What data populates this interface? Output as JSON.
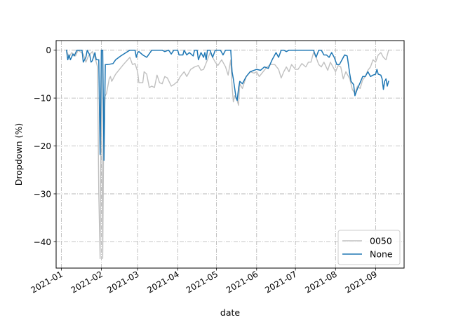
{
  "chart_data": {
    "type": "line",
    "title": "",
    "xlabel": "date",
    "ylabel": "Dropdown (%)",
    "x_range": [
      "2020-12-28",
      "2021-09-23"
    ],
    "ylim": [
      -45.5,
      2
    ],
    "grid": true,
    "grid_style": "dash-dot",
    "legend_position": "lower-right",
    "x_ticks": [
      {
        "date": "2021-01-01",
        "label": "2021-01"
      },
      {
        "date": "2021-02-01",
        "label": "2021-02"
      },
      {
        "date": "2021-03-01",
        "label": "2021-03"
      },
      {
        "date": "2021-04-01",
        "label": "2021-04"
      },
      {
        "date": "2021-05-01",
        "label": "2021-05"
      },
      {
        "date": "2021-06-01",
        "label": "2021-06"
      },
      {
        "date": "2021-07-01",
        "label": "2021-07"
      },
      {
        "date": "2021-08-01",
        "label": "2021-08"
      },
      {
        "date": "2021-09-01",
        "label": "2021-09"
      }
    ],
    "y_ticks": [
      {
        "value": 0,
        "label": "0"
      },
      {
        "value": -10,
        "label": "−10"
      },
      {
        "value": -20,
        "label": "−20"
      },
      {
        "value": -30,
        "label": "−30"
      },
      {
        "value": -40,
        "label": "−40"
      }
    ],
    "series": [
      {
        "name": "0050",
        "color": "#c0c0c0",
        "points": [
          [
            "2021-01-05",
            0
          ],
          [
            "2021-01-07",
            -1.5
          ],
          [
            "2021-01-09",
            -0.5
          ],
          [
            "2021-01-12",
            -1.2
          ],
          [
            "2021-01-14",
            0
          ],
          [
            "2021-01-18",
            -0.8
          ],
          [
            "2021-01-20",
            -2.5
          ],
          [
            "2021-01-22",
            -1.2
          ],
          [
            "2021-01-25",
            -0.3
          ],
          [
            "2021-01-27",
            -1.5
          ],
          [
            "2021-01-29",
            -3.5
          ],
          [
            "2021-01-30",
            -30
          ],
          [
            "2021-01-31",
            -43.5
          ],
          [
            "2021-02-01",
            0
          ],
          [
            "2021-02-02",
            -43.5
          ],
          [
            "2021-02-03",
            -10
          ],
          [
            "2021-02-05",
            -9
          ],
          [
            "2021-02-07",
            -6
          ],
          [
            "2021-02-08",
            -5.5
          ],
          [
            "2021-02-09",
            -6.5
          ],
          [
            "2021-02-12",
            -5
          ],
          [
            "2021-02-18",
            -3
          ],
          [
            "2021-02-23",
            -1.5
          ],
          [
            "2021-02-25",
            -3
          ],
          [
            "2021-02-27",
            -2.8
          ],
          [
            "2021-03-01",
            -4.5
          ],
          [
            "2021-03-02",
            -6.8
          ],
          [
            "2021-03-05",
            -6.8
          ],
          [
            "2021-03-06",
            -4.5
          ],
          [
            "2021-03-08",
            -5
          ],
          [
            "2021-03-10",
            -7.8
          ],
          [
            "2021-03-12",
            -7.5
          ],
          [
            "2021-03-14",
            -7.8
          ],
          [
            "2021-03-16",
            -5.2
          ],
          [
            "2021-03-18",
            -6.8
          ],
          [
            "2021-03-20",
            -7
          ],
          [
            "2021-03-22",
            -5.5
          ],
          [
            "2021-03-24",
            -5.8
          ],
          [
            "2021-03-27",
            -7.5
          ],
          [
            "2021-03-29",
            -7.2
          ],
          [
            "2021-04-01",
            -6.5
          ],
          [
            "2021-04-03",
            -5.5
          ],
          [
            "2021-04-06",
            -4.5
          ],
          [
            "2021-04-08",
            -5.5
          ],
          [
            "2021-04-11",
            -4
          ],
          [
            "2021-04-14",
            -3.5
          ],
          [
            "2021-04-17",
            -3.2
          ],
          [
            "2021-04-19",
            -4.2
          ],
          [
            "2021-04-21",
            -4
          ],
          [
            "2021-04-24",
            -2
          ],
          [
            "2021-04-26",
            -0.5
          ],
          [
            "2021-04-28",
            -1.5
          ],
          [
            "2021-04-30",
            -2.5
          ],
          [
            "2021-05-02",
            -3.2
          ],
          [
            "2021-05-05",
            -2
          ],
          [
            "2021-05-08",
            -3.5
          ],
          [
            "2021-05-10",
            -5.2
          ],
          [
            "2021-05-12",
            -2
          ],
          [
            "2021-05-13",
            -7.5
          ],
          [
            "2021-05-14",
            -10.8
          ],
          [
            "2021-05-15",
            -9.5
          ],
          [
            "2021-05-17",
            -10.5
          ],
          [
            "2021-05-18",
            -11.5
          ],
          [
            "2021-05-19",
            -7
          ],
          [
            "2021-05-21",
            -8
          ],
          [
            "2021-05-24",
            -5.5
          ],
          [
            "2021-05-27",
            -4.5
          ],
          [
            "2021-05-30",
            -4.8
          ],
          [
            "2021-06-01",
            -4.5
          ],
          [
            "2021-06-03",
            -5.5
          ],
          [
            "2021-06-06",
            -4.5
          ],
          [
            "2021-06-09",
            -3.5
          ],
          [
            "2021-06-12",
            -3
          ],
          [
            "2021-06-15",
            -3
          ],
          [
            "2021-06-18",
            -4
          ],
          [
            "2021-06-20",
            -5.8
          ],
          [
            "2021-06-22",
            -4.5
          ],
          [
            "2021-06-24",
            -3.5
          ],
          [
            "2021-06-26",
            -4.5
          ],
          [
            "2021-06-28",
            -3
          ],
          [
            "2021-07-01",
            -4
          ],
          [
            "2021-07-03",
            -4
          ],
          [
            "2021-07-06",
            -2.8
          ],
          [
            "2021-07-09",
            -3.5
          ],
          [
            "2021-07-11",
            -2.5
          ],
          [
            "2021-07-13",
            -2.5
          ],
          [
            "2021-07-15",
            -0.5
          ],
          [
            "2021-07-17",
            -1.5
          ],
          [
            "2021-07-19",
            -3
          ],
          [
            "2021-07-21",
            -3.5
          ],
          [
            "2021-07-23",
            -2.5
          ],
          [
            "2021-07-26",
            -4.2
          ],
          [
            "2021-07-28",
            -2.5
          ],
          [
            "2021-07-30",
            -3.5
          ],
          [
            "2021-08-01",
            -4.5
          ],
          [
            "2021-08-03",
            -3.2
          ],
          [
            "2021-08-05",
            -3.5
          ],
          [
            "2021-08-07",
            -6
          ],
          [
            "2021-08-09",
            -4.5
          ],
          [
            "2021-08-12",
            -6
          ],
          [
            "2021-08-14",
            -8.2
          ],
          [
            "2021-08-16",
            -9
          ],
          [
            "2021-08-18",
            -7.5
          ],
          [
            "2021-08-20",
            -8
          ],
          [
            "2021-08-22",
            -6.2
          ],
          [
            "2021-08-24",
            -5.5
          ],
          [
            "2021-08-26",
            -4.2
          ],
          [
            "2021-08-28",
            -3.5
          ],
          [
            "2021-08-30",
            -2
          ],
          [
            "2021-09-01",
            -2.5
          ],
          [
            "2021-09-03",
            -1
          ],
          [
            "2021-09-05",
            -0.5
          ],
          [
            "2021-09-07",
            -1.5
          ],
          [
            "2021-09-09",
            -2
          ],
          [
            "2021-09-11",
            0
          ]
        ]
      },
      {
        "name": "None",
        "color": "#1f77b4",
        "points": [
          [
            "2021-01-05",
            0
          ],
          [
            "2021-01-06",
            -2
          ],
          [
            "2021-01-07",
            -1
          ],
          [
            "2021-01-08",
            -2
          ],
          [
            "2021-01-10",
            -0.8
          ],
          [
            "2021-01-11",
            -1.2
          ],
          [
            "2021-01-13",
            0
          ],
          [
            "2021-01-17",
            0
          ],
          [
            "2021-01-18",
            -2.5
          ],
          [
            "2021-01-20",
            -1.5
          ],
          [
            "2021-01-21",
            0
          ],
          [
            "2021-01-23",
            -1
          ],
          [
            "2021-01-24",
            -2.5
          ],
          [
            "2021-01-25",
            -2.2
          ],
          [
            "2021-01-27",
            -0.5
          ],
          [
            "2021-01-28",
            -2
          ],
          [
            "2021-01-30",
            -2
          ],
          [
            "2021-01-31",
            -21.8
          ],
          [
            "2021-02-01",
            0
          ],
          [
            "2021-02-02",
            0
          ],
          [
            "2021-02-03",
            -23
          ],
          [
            "2021-02-04",
            -3
          ],
          [
            "2021-02-06",
            -3
          ],
          [
            "2021-02-10",
            -2.8
          ],
          [
            "2021-02-12",
            -2
          ],
          [
            "2021-02-16",
            -1.2
          ],
          [
            "2021-02-20",
            -0.5
          ],
          [
            "2021-02-23",
            0
          ],
          [
            "2021-02-27",
            0
          ],
          [
            "2021-02-28",
            -1.5
          ],
          [
            "2021-03-01",
            -0.5
          ],
          [
            "2021-03-02",
            -0.3
          ],
          [
            "2021-03-05",
            -1
          ],
          [
            "2021-03-08",
            -1.5
          ],
          [
            "2021-03-12",
            0
          ],
          [
            "2021-03-20",
            0
          ],
          [
            "2021-03-22",
            -0.3
          ],
          [
            "2021-03-25",
            0
          ],
          [
            "2021-03-27",
            -0.8
          ],
          [
            "2021-03-29",
            0
          ],
          [
            "2021-04-01",
            0
          ],
          [
            "2021-04-02",
            -1
          ],
          [
            "2021-04-05",
            -1
          ],
          [
            "2021-04-06",
            0
          ],
          [
            "2021-04-08",
            -1
          ],
          [
            "2021-04-10",
            -0.5
          ],
          [
            "2021-04-13",
            -1.2
          ],
          [
            "2021-04-14",
            0
          ],
          [
            "2021-04-16",
            0
          ],
          [
            "2021-04-17",
            -2
          ],
          [
            "2021-04-19",
            -0.5
          ],
          [
            "2021-04-21",
            -1.5
          ],
          [
            "2021-04-22",
            -0.5
          ],
          [
            "2021-04-23",
            -2
          ],
          [
            "2021-04-24",
            0
          ],
          [
            "2021-04-26",
            0
          ],
          [
            "2021-04-28",
            -1.5
          ],
          [
            "2021-04-30",
            0
          ],
          [
            "2021-05-04",
            0
          ],
          [
            "2021-05-06",
            -1
          ],
          [
            "2021-05-08",
            0
          ],
          [
            "2021-05-11",
            0
          ],
          [
            "2021-05-12",
            0
          ],
          [
            "2021-05-13",
            -4.5
          ],
          [
            "2021-05-14",
            -6
          ],
          [
            "2021-05-16",
            -9.8
          ],
          [
            "2021-05-17",
            -10.5
          ],
          [
            "2021-05-18",
            -8
          ],
          [
            "2021-05-19",
            -6.5
          ],
          [
            "2021-05-21",
            -7
          ],
          [
            "2021-05-24",
            -5.5
          ],
          [
            "2021-05-27",
            -4.5
          ],
          [
            "2021-05-30",
            -4.2
          ],
          [
            "2021-06-01",
            -4
          ],
          [
            "2021-06-04",
            -4.2
          ],
          [
            "2021-06-07",
            -3.5
          ],
          [
            "2021-06-10",
            -3.8
          ],
          [
            "2021-06-13",
            -2
          ],
          [
            "2021-06-16",
            -0.5
          ],
          [
            "2021-06-18",
            -1.5
          ],
          [
            "2021-06-20",
            0
          ],
          [
            "2021-06-22",
            0
          ],
          [
            "2021-06-24",
            -0.3
          ],
          [
            "2021-06-26",
            0
          ],
          [
            "2021-07-15",
            0
          ],
          [
            "2021-07-17",
            -1.5
          ],
          [
            "2021-07-19",
            0
          ],
          [
            "2021-07-21",
            0
          ],
          [
            "2021-07-23",
            -1
          ],
          [
            "2021-07-25",
            -1
          ],
          [
            "2021-07-27",
            -1.5
          ],
          [
            "2021-07-29",
            -0.5
          ],
          [
            "2021-07-31",
            -1.5
          ],
          [
            "2021-08-02",
            -3
          ],
          [
            "2021-08-04",
            -3
          ],
          [
            "2021-08-06",
            -2
          ],
          [
            "2021-08-08",
            -1
          ],
          [
            "2021-08-10",
            -1.2
          ],
          [
            "2021-08-12",
            -5
          ],
          [
            "2021-08-13",
            -6.5
          ],
          [
            "2021-08-15",
            -7.2
          ],
          [
            "2021-08-16",
            -9.5
          ],
          [
            "2021-08-18",
            -8
          ],
          [
            "2021-08-20",
            -6.8
          ],
          [
            "2021-08-22",
            -5.5
          ],
          [
            "2021-08-24",
            -5.5
          ],
          [
            "2021-08-26",
            -4.5
          ],
          [
            "2021-08-28",
            -5.5
          ],
          [
            "2021-08-30",
            -5.2
          ],
          [
            "2021-09-01",
            -5
          ],
          [
            "2021-09-02",
            -4
          ],
          [
            "2021-09-03",
            -5
          ],
          [
            "2021-09-05",
            -5.2
          ],
          [
            "2021-09-06",
            -6
          ],
          [
            "2021-09-07",
            -8.2
          ],
          [
            "2021-09-08",
            -6.5
          ],
          [
            "2021-09-09",
            -6
          ],
          [
            "2021-09-10",
            -7.5
          ],
          [
            "2021-09-11",
            -6.5
          ]
        ]
      }
    ]
  }
}
